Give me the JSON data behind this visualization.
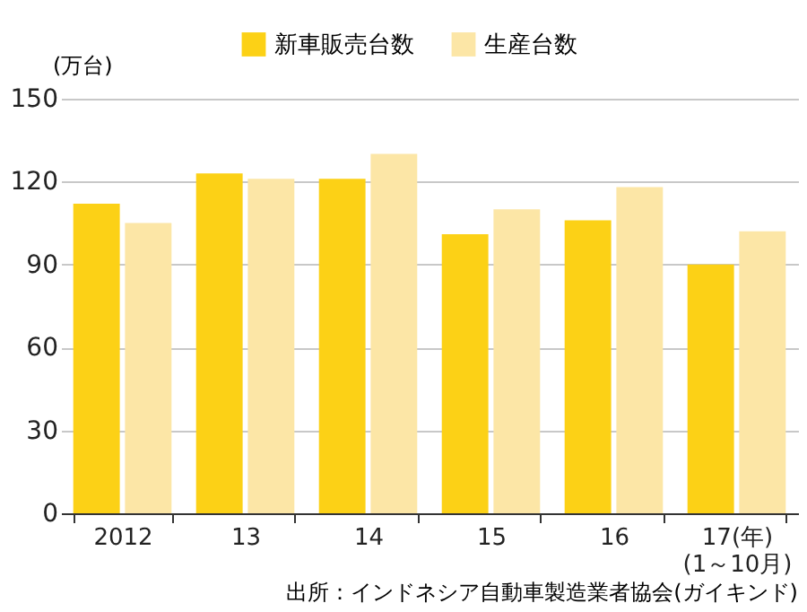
{
  "chart_data": {
    "type": "bar",
    "categories": [
      "2012",
      "13",
      "14",
      "15",
      "16",
      "17(年)\n(1～10月)"
    ],
    "series": [
      {
        "name": "新車販売台数",
        "color": "#fcd116",
        "values": [
          112,
          123,
          121,
          101,
          106,
          90
        ]
      },
      {
        "name": "生産台数",
        "color": "#fce6a6",
        "values": [
          105,
          121,
          130,
          110,
          118,
          102
        ]
      }
    ],
    "ylabel": "(万台)",
    "ylim": [
      0,
      150
    ],
    "yticks": [
      0,
      30,
      60,
      90,
      120,
      150
    ],
    "grid": "y",
    "legend": "top",
    "annotations": [
      "出所：インドネシア自動車製造業者協会(ガイキンド)"
    ]
  }
}
